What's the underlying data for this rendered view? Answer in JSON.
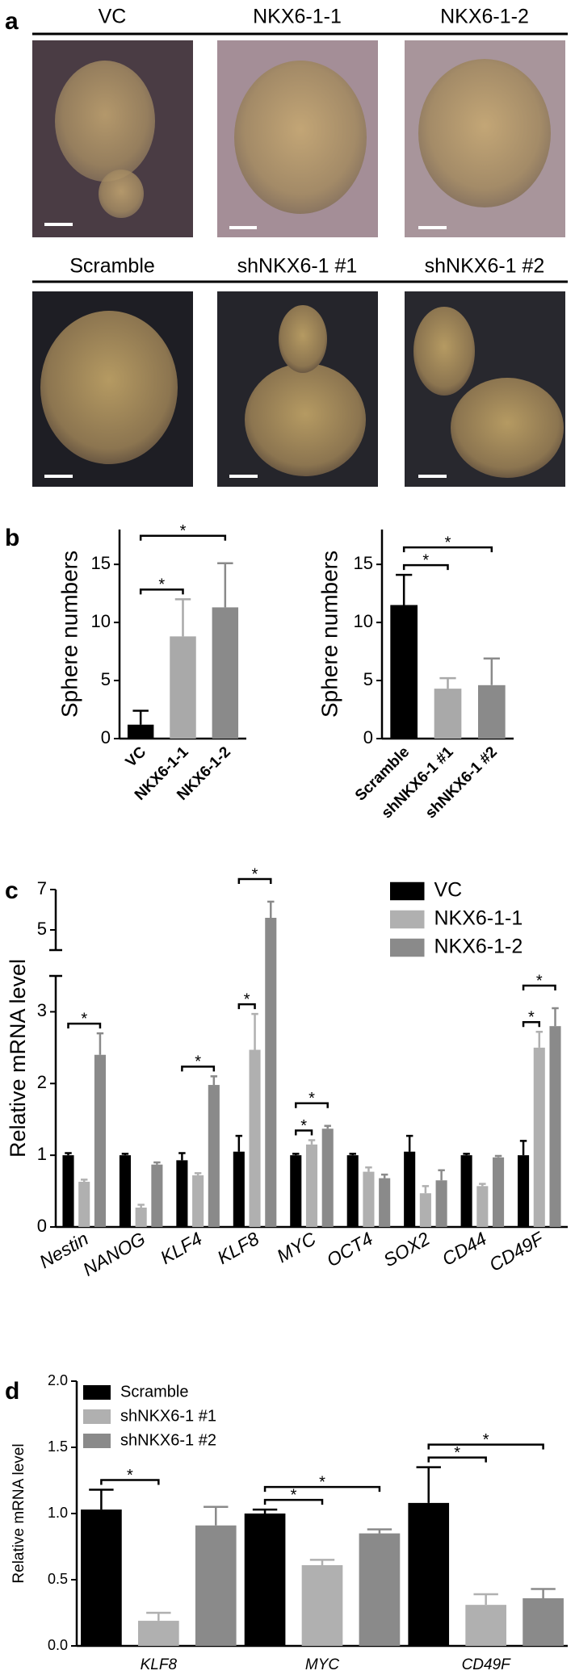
{
  "panel_labels": [
    "a",
    "b",
    "c",
    "d"
  ],
  "micrographs": {
    "rows": [
      [
        "VC",
        "NKX6-1-1",
        "NKX6-1-2"
      ],
      [
        "Scramble",
        "shNKX6-1 #1",
        "shNKX6-1 #2"
      ]
    ]
  },
  "chart_data": [
    {
      "type": "bar",
      "ylabel": "Sphere numbers",
      "categories": [
        "VC",
        "NKX6-1-1",
        "NKX6-1-2"
      ],
      "values": [
        1.2,
        8.8,
        11.3
      ],
      "errors": [
        1.2,
        3.2,
        3.8
      ],
      "colors": [
        "#000000",
        "#a9a9a9",
        "#8a8a8a"
      ],
      "ylim": [
        0,
        18
      ],
      "yticks": [
        0,
        5,
        10,
        15
      ],
      "annotations": [
        {
          "text": "*",
          "between": [
            "VC",
            "NKX6-1-1"
          ]
        },
        {
          "text": "*",
          "between": [
            "VC",
            "NKX6-1-2"
          ]
        }
      ]
    },
    {
      "type": "bar",
      "ylabel": "Sphere numbers",
      "categories": [
        "Scramble",
        "shNKX6-1 #1",
        "shNKX6-1 #2"
      ],
      "values": [
        11.5,
        4.3,
        4.6
      ],
      "errors": [
        2.6,
        0.9,
        2.3
      ],
      "colors": [
        "#000000",
        "#a9a9a9",
        "#8a8a8a"
      ],
      "ylim": [
        0,
        18
      ],
      "yticks": [
        0,
        5,
        10,
        15
      ],
      "annotations": [
        {
          "text": "*",
          "between": [
            "Scramble",
            "shNKX6-1 #1"
          ]
        },
        {
          "text": "*",
          "between": [
            "Scramble",
            "shNKX6-1 #2"
          ]
        }
      ]
    },
    {
      "type": "bar",
      "ylabel": "Relative mRNA level",
      "categories": [
        "Nestin",
        "NANOG",
        "KLF4",
        "KLF8",
        "MYC",
        "OCT4",
        "SOX2",
        "CD44",
        "CD49F"
      ],
      "series": [
        {
          "name": "VC",
          "color": "#000000",
          "values": [
            1.0,
            1.0,
            0.93,
            1.05,
            1.0,
            1.0,
            1.05,
            1.0,
            1.0
          ],
          "errors": [
            0.03,
            0.02,
            0.1,
            0.22,
            0.02,
            0.02,
            0.22,
            0.02,
            0.2
          ]
        },
        {
          "name": "NKX6-1-1",
          "color": "#b0b0b0",
          "values": [
            0.63,
            0.27,
            0.72,
            2.47,
            1.15,
            0.77,
            0.47,
            0.57,
            2.5
          ],
          "errors": [
            0.03,
            0.04,
            0.03,
            0.5,
            0.06,
            0.06,
            0.1,
            0.03,
            0.22
          ]
        },
        {
          "name": "NKX6-1-2",
          "color": "#8a8a8a",
          "values": [
            2.4,
            0.87,
            1.98,
            5.6,
            1.37,
            0.68,
            0.65,
            0.97,
            2.8
          ],
          "errors": [
            0.3,
            0.03,
            0.12,
            0.8,
            0.04,
            0.05,
            0.14,
            0.02,
            0.25
          ]
        }
      ],
      "ylim": [
        0,
        7
      ],
      "ybreak": [
        3.5,
        4
      ],
      "yticks": [
        0,
        1,
        2,
        3,
        5,
        7
      ],
      "legend": "upper right",
      "annotations": [
        {
          "text": "*",
          "category": "Nestin",
          "between": [
            "VC",
            "NKX6-1-2"
          ]
        },
        {
          "text": "*",
          "category": "KLF4",
          "between": [
            "VC",
            "NKX6-1-2"
          ]
        },
        {
          "text": "*",
          "category": "KLF8",
          "between": [
            "VC",
            "NKX6-1-1"
          ]
        },
        {
          "text": "*",
          "category": "KLF8",
          "between": [
            "VC",
            "NKX6-1-2"
          ]
        },
        {
          "text": "*",
          "category": "MYC",
          "between": [
            "VC",
            "NKX6-1-1"
          ]
        },
        {
          "text": "*",
          "category": "MYC",
          "between": [
            "VC",
            "NKX6-1-2"
          ]
        },
        {
          "text": "*",
          "category": "CD49F",
          "between": [
            "VC",
            "NKX6-1-1"
          ]
        },
        {
          "text": "*",
          "category": "CD49F",
          "between": [
            "VC",
            "NKX6-1-2"
          ]
        }
      ]
    },
    {
      "type": "bar",
      "ylabel": "Relative mRNA level",
      "categories": [
        "KLF8",
        "MYC",
        "CD49F"
      ],
      "series": [
        {
          "name": "Scramble",
          "color": "#000000",
          "values": [
            1.03,
            1.0,
            1.08
          ],
          "errors": [
            0.15,
            0.03,
            0.27
          ]
        },
        {
          "name": "shNKX6-1 #1",
          "color": "#b0b0b0",
          "values": [
            0.19,
            0.61,
            0.31
          ],
          "errors": [
            0.06,
            0.04,
            0.08
          ]
        },
        {
          "name": "shNKX6-1 #2",
          "color": "#8a8a8a",
          "values": [
            0.91,
            0.85,
            0.36
          ],
          "errors": [
            0.14,
            0.03,
            0.07
          ]
        }
      ],
      "ylim": [
        0,
        2
      ],
      "yticks": [
        {
          "value": 0,
          "label": "0.0"
        },
        0.5,
        {
          "value": 1,
          "label": "1.0"
        },
        1.5,
        {
          "value": 2,
          "label": "2.0"
        }
      ],
      "legend": "upper left",
      "annotations": [
        {
          "text": "*",
          "category": "KLF8",
          "between": [
            "Scramble",
            "shNKX6-1 #1"
          ]
        },
        {
          "text": "*",
          "category": "MYC",
          "between": [
            "Scramble",
            "shNKX6-1 #1"
          ]
        },
        {
          "text": "*",
          "category": "MYC",
          "between": [
            "Scramble",
            "shNKX6-1 #2"
          ]
        },
        {
          "text": "*",
          "category": "CD49F",
          "between": [
            "Scramble",
            "shNKX6-1 #1"
          ]
        },
        {
          "text": "*",
          "category": "CD49F",
          "between": [
            "Scramble",
            "shNKX6-1 #2"
          ]
        }
      ]
    }
  ]
}
